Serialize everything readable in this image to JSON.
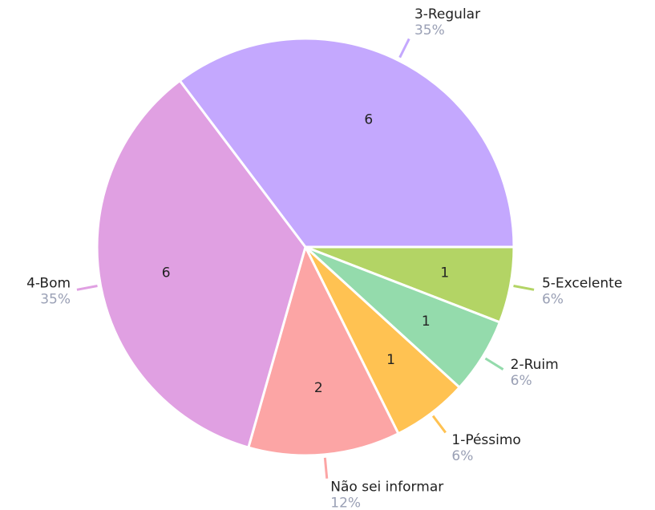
{
  "chart_data": {
    "type": "pie",
    "categories": [
      "5-Excelente",
      "2-Ruim",
      "1-Péssimo",
      "Não sei informar",
      "4-Bom",
      "3-Regular"
    ],
    "values": [
      1,
      1,
      1,
      2,
      6,
      6
    ],
    "percent_labels": [
      "6%",
      "6%",
      "6%",
      "12%",
      "35%",
      "35%"
    ],
    "colors": [
      "#b3d465",
      "#94dbac",
      "#ffc252",
      "#fca5a5",
      "#e0a0e2",
      "#c4a8fe"
    ]
  }
}
